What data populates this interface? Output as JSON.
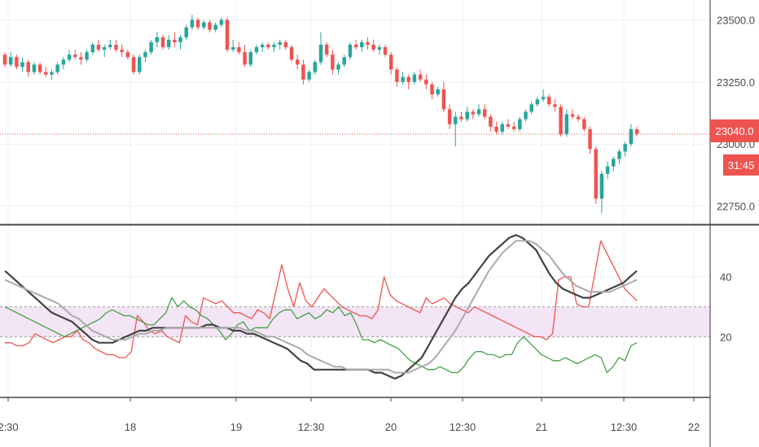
{
  "chart_data": [
    {
      "type": "candlestick",
      "title": "",
      "y_ticks": [
        22750.0,
        23000.0,
        23250.0,
        23500.0
      ],
      "y_tick_labels": [
        "22750.0",
        "23000.0",
        "23250.0",
        "23500.0"
      ],
      "ylim": [
        22680,
        23580
      ],
      "last_price": 23040.0,
      "last_price_label": "23040.0",
      "countdown_label": "31:45",
      "grid": true,
      "colors": {
        "up": "#26a69a",
        "down": "#ef5350",
        "price_line": "#ef5350",
        "grid": "#eef0f3"
      },
      "candles": [
        [
          23360,
          23370,
          23310,
          23320
        ],
        [
          23320,
          23370,
          23310,
          23350
        ],
        [
          23350,
          23360,
          23300,
          23310
        ],
        [
          23310,
          23350,
          23290,
          23330
        ],
        [
          23330,
          23340,
          23270,
          23290
        ],
        [
          23290,
          23330,
          23280,
          23320
        ],
        [
          23320,
          23330,
          23280,
          23290
        ],
        [
          23290,
          23310,
          23270,
          23280
        ],
        [
          23280,
          23300,
          23260,
          23290
        ],
        [
          23290,
          23330,
          23280,
          23320
        ],
        [
          23320,
          23350,
          23300,
          23340
        ],
        [
          23340,
          23380,
          23330,
          23360
        ],
        [
          23360,
          23380,
          23340,
          23350
        ],
        [
          23350,
          23370,
          23320,
          23340
        ],
        [
          23340,
          23380,
          23330,
          23370
        ],
        [
          23370,
          23410,
          23360,
          23400
        ],
        [
          23400,
          23420,
          23370,
          23380
        ],
        [
          23380,
          23400,
          23350,
          23390
        ],
        [
          23390,
          23420,
          23380,
          23400
        ],
        [
          23400,
          23420,
          23370,
          23380
        ],
        [
          23380,
          23400,
          23350,
          23370
        ],
        [
          23370,
          23380,
          23340,
          23350
        ],
        [
          23350,
          23360,
          23280,
          23290
        ],
        [
          23290,
          23360,
          23280,
          23350
        ],
        [
          23350,
          23380,
          23330,
          23370
        ],
        [
          23370,
          23420,
          23360,
          23410
        ],
        [
          23410,
          23450,
          23390,
          23430
        ],
        [
          23430,
          23440,
          23380,
          23390
        ],
        [
          23390,
          23440,
          23380,
          23420
        ],
        [
          23420,
          23450,
          23390,
          23410
        ],
        [
          23410,
          23440,
          23380,
          23430
        ],
        [
          23430,
          23480,
          23420,
          23470
        ],
        [
          23470,
          23520,
          23460,
          23500
        ],
        [
          23500,
          23510,
          23460,
          23470
        ],
        [
          23470,
          23500,
          23460,
          23490
        ],
        [
          23490,
          23500,
          23450,
          23460
        ],
        [
          23460,
          23490,
          23450,
          23480
        ],
        [
          23480,
          23510,
          23470,
          23500
        ],
        [
          23500,
          23510,
          23370,
          23380
        ],
        [
          23380,
          23420,
          23370,
          23390
        ],
        [
          23390,
          23410,
          23360,
          23370
        ],
        [
          23370,
          23400,
          23310,
          23320
        ],
        [
          23320,
          23380,
          23310,
          23370
        ],
        [
          23370,
          23400,
          23360,
          23390
        ],
        [
          23390,
          23410,
          23370,
          23400
        ],
        [
          23400,
          23410,
          23380,
          23390
        ],
        [
          23390,
          23410,
          23370,
          23400
        ],
        [
          23400,
          23420,
          23380,
          23410
        ],
        [
          23410,
          23420,
          23380,
          23390
        ],
        [
          23390,
          23400,
          23330,
          23340
        ],
        [
          23340,
          23360,
          23300,
          23320
        ],
        [
          23320,
          23340,
          23240,
          23260
        ],
        [
          23260,
          23300,
          23250,
          23290
        ],
        [
          23290,
          23340,
          23280,
          23330
        ],
        [
          23330,
          23450,
          23320,
          23400
        ],
        [
          23400,
          23410,
          23350,
          23360
        ],
        [
          23360,
          23380,
          23280,
          23300
        ],
        [
          23300,
          23330,
          23280,
          23320
        ],
        [
          23320,
          23360,
          23310,
          23350
        ],
        [
          23350,
          23410,
          23340,
          23400
        ],
        [
          23400,
          23420,
          23380,
          23390
        ],
        [
          23390,
          23420,
          23370,
          23410
        ],
        [
          23410,
          23430,
          23380,
          23400
        ],
        [
          23400,
          23420,
          23370,
          23380
        ],
        [
          23380,
          23400,
          23360,
          23390
        ],
        [
          23390,
          23400,
          23350,
          23360
        ],
        [
          23360,
          23370,
          23280,
          23300
        ],
        [
          23300,
          23310,
          23230,
          23250
        ],
        [
          23250,
          23290,
          23240,
          23270
        ],
        [
          23270,
          23280,
          23220,
          23250
        ],
        [
          23250,
          23290,
          23240,
          23280
        ],
        [
          23280,
          23300,
          23250,
          23260
        ],
        [
          23260,
          23280,
          23220,
          23240
        ],
        [
          23240,
          23250,
          23180,
          23200
        ],
        [
          23200,
          23230,
          23190,
          23220
        ],
        [
          23220,
          23250,
          23130,
          23140
        ],
        [
          23140,
          23160,
          23060,
          23080
        ],
        [
          23080,
          23130,
          22990,
          23110
        ],
        [
          23110,
          23130,
          23090,
          23100
        ],
        [
          23100,
          23150,
          23090,
          23130
        ],
        [
          23130,
          23140,
          23100,
          23120
        ],
        [
          23120,
          23160,
          23110,
          23140
        ],
        [
          23140,
          23160,
          23100,
          23110
        ],
        [
          23110,
          23120,
          23050,
          23070
        ],
        [
          23070,
          23090,
          23040,
          23050
        ],
        [
          23050,
          23090,
          23040,
          23080
        ],
        [
          23080,
          23100,
          23060,
          23070
        ],
        [
          23070,
          23090,
          23050,
          23060
        ],
        [
          23060,
          23110,
          23050,
          23100
        ],
        [
          23100,
          23140,
          23090,
          23130
        ],
        [
          23130,
          23170,
          23120,
          23160
        ],
        [
          23160,
          23190,
          23150,
          23180
        ],
        [
          23180,
          23220,
          23170,
          23190
        ],
        [
          23190,
          23200,
          23150,
          23160
        ],
        [
          23160,
          23180,
          23130,
          23150
        ],
        [
          23150,
          23160,
          23030,
          23040
        ],
        [
          23040,
          23140,
          23030,
          23120
        ],
        [
          23120,
          23140,
          23100,
          23110
        ],
        [
          23110,
          23120,
          23090,
          23100
        ],
        [
          23100,
          23110,
          23050,
          23060
        ],
        [
          23060,
          23070,
          22960,
          22980
        ],
        [
          22980,
          22990,
          22760,
          22780
        ],
        [
          22780,
          22890,
          22720,
          22880
        ],
        [
          22880,
          22930,
          22860,
          22910
        ],
        [
          22910,
          22950,
          22890,
          22940
        ],
        [
          22940,
          22980,
          22920,
          22970
        ],
        [
          22970,
          23010,
          22950,
          23000
        ],
        [
          23000,
          23080,
          22990,
          23060
        ],
        [
          23060,
          23070,
          23030,
          23040
        ]
      ]
    },
    {
      "type": "line",
      "title": "",
      "y_ticks": [
        20,
        40
      ],
      "y_tick_labels": [
        "20",
        "40"
      ],
      "ylim": [
        0,
        57
      ],
      "band": [
        20,
        30
      ],
      "grid": true,
      "x_tick_labels": [
        "2:30",
        "18",
        "19",
        "12:30",
        "20",
        "12:30",
        "21",
        "12:30",
        "22"
      ],
      "colors": {
        "band": "#f3e5f5",
        "band_line": "#9e9e9e"
      },
      "series": [
        {
          "color": "#ef5350",
          "values": [
            18,
            18,
            17,
            17,
            18,
            21,
            20,
            19,
            18,
            19,
            20,
            20,
            22,
            19,
            18,
            16,
            15,
            14,
            14,
            13,
            13,
            15,
            27,
            25,
            22,
            21,
            22,
            20,
            19,
            18,
            27,
            25,
            24,
            33,
            32,
            31,
            32,
            30,
            28,
            28,
            27,
            26,
            29,
            28,
            26,
            35,
            44,
            36,
            30,
            38,
            32,
            30,
            33,
            36,
            34,
            32,
            30,
            29,
            28,
            27,
            27,
            26,
            29,
            40,
            34,
            32,
            31,
            30,
            29,
            28,
            33,
            31,
            32,
            33,
            31,
            30,
            29,
            28,
            30,
            29,
            28,
            27,
            26,
            25,
            24,
            23,
            22,
            21,
            20,
            20,
            19,
            21,
            39,
            40,
            40,
            31,
            30,
            30,
            41,
            52,
            48,
            44,
            40,
            36,
            34,
            32
          ]
        },
        {
          "color": "#43a047",
          "values": [
            30,
            29,
            28,
            27,
            26,
            25,
            24,
            23,
            22,
            21,
            20,
            21,
            22,
            23,
            24,
            25,
            26,
            28,
            29,
            28,
            27,
            27,
            26,
            25,
            24,
            24,
            26,
            28,
            33,
            30,
            32,
            30,
            29,
            27,
            26,
            24,
            22,
            19,
            21,
            24,
            25,
            22,
            23,
            23,
            23,
            26,
            28,
            29,
            29,
            26,
            27,
            28,
            26,
            27,
            29,
            28,
            30,
            27,
            28,
            24,
            19,
            19,
            18,
            19,
            18,
            17,
            16,
            14,
            12,
            11,
            10,
            9,
            9,
            10,
            9,
            8,
            8,
            10,
            13,
            15,
            15,
            14,
            14,
            13,
            14,
            14,
            18,
            20,
            18,
            16,
            14,
            13,
            12,
            12,
            13,
            12,
            11,
            12,
            13,
            14,
            13,
            8,
            10,
            13,
            12,
            17,
            18
          ]
        },
        {
          "color": "#424242",
          "width": 2.2,
          "values": [
            42,
            40,
            38,
            36,
            34,
            32,
            30,
            28,
            27,
            26,
            25,
            23,
            21,
            19,
            18,
            18,
            18,
            19,
            20,
            21,
            22,
            22,
            23,
            23,
            23,
            23,
            23,
            23,
            23,
            23,
            24,
            24,
            23,
            23,
            22,
            22,
            21,
            21,
            20,
            19,
            18,
            17,
            16,
            14,
            12,
            11,
            9,
            9,
            9,
            9,
            9,
            9,
            9,
            9,
            9,
            8,
            8,
            7,
            6,
            7,
            9,
            11,
            13,
            17,
            21,
            25,
            29,
            33,
            36,
            38,
            41,
            44,
            47,
            49,
            51,
            53,
            54,
            53,
            51,
            49,
            45,
            41,
            38,
            36,
            35,
            34,
            33,
            33,
            34,
            35,
            36,
            37,
            38,
            40,
            42
          ]
        },
        {
          "color": "#aaaaaa",
          "width": 2.0,
          "values": [
            39,
            38,
            37,
            36,
            35,
            34,
            33,
            32,
            31,
            29,
            27,
            26,
            24,
            22,
            21,
            20,
            19,
            19,
            19,
            20,
            21,
            21,
            22,
            22,
            23,
            23,
            23,
            23,
            23,
            23,
            23,
            23,
            23,
            23,
            23,
            23,
            22,
            22,
            21,
            20,
            20,
            19,
            18,
            17,
            16,
            14,
            13,
            12,
            11,
            10,
            10,
            9,
            9,
            9,
            9,
            9,
            9,
            9,
            8,
            8,
            8,
            9,
            10,
            11,
            13,
            16,
            19,
            22,
            26,
            30,
            34,
            38,
            42,
            45,
            48,
            50,
            52,
            52,
            52,
            51,
            49,
            47,
            44,
            41,
            39,
            37,
            36,
            35,
            35,
            35,
            35,
            36,
            37,
            38,
            39
          ]
        }
      ]
    }
  ]
}
